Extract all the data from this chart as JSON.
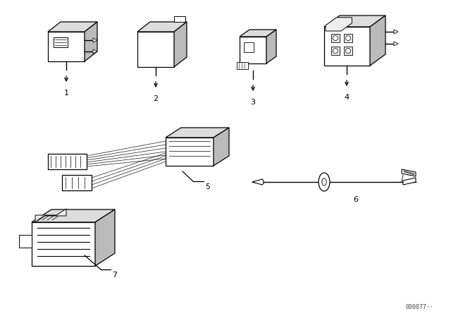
{
  "background_color": "#ffffff",
  "line_color": "#000000",
  "figure_width": 6.4,
  "figure_height": 4.48,
  "dpi": 100,
  "watermark": "000077··",
  "lw": 0.9
}
